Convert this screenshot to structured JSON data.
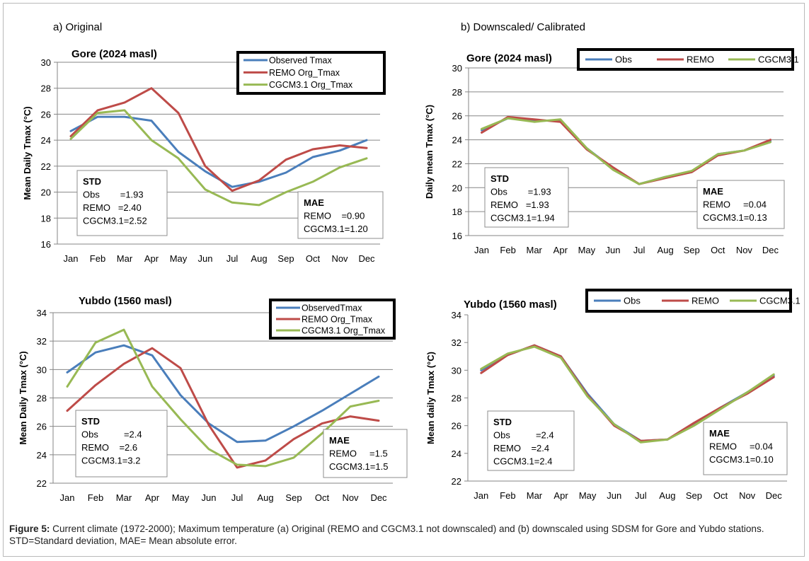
{
  "colors": {
    "obs": "#4a7ebb",
    "remo": "#be4b48",
    "cgcm": "#98b954",
    "grid": "#868686"
  },
  "section_labels": {
    "a": "a) Original",
    "b": "b) Downscaled/ Calibrated"
  },
  "caption": {
    "label": "Figure 5:",
    "text": " Current climate (1972-2000); Maximum temperature (a) Original (REMO and CGCM3.1 not downscaled) and (b) downscaled using SDSM for Gore and Yubdo stations. STD=Standard deviation, MAE= Mean absolute error."
  },
  "chart_data": [
    {
      "type": "line",
      "title": "Gore (2024 masl)",
      "ylabel": "Mean Daily Tmax (°C)",
      "ylim": [
        16,
        30
      ],
      "yticks": [
        "16",
        "18",
        "20",
        "22",
        "24",
        "26",
        "28",
        "30"
      ],
      "categories": [
        "Jan",
        "Feb",
        "Mar",
        "Apr",
        "May",
        "Jun",
        "Jul",
        "Aug",
        "Sep",
        "Oct",
        "Nov",
        "Dec"
      ],
      "grid": true,
      "legend_position": "top-right",
      "series": [
        {
          "name": "Observed Tmax",
          "color_key": "obs",
          "values": [
            24.7,
            25.8,
            25.8,
            25.5,
            23.1,
            21.6,
            20.4,
            20.8,
            21.5,
            22.7,
            23.2,
            24.0
          ]
        },
        {
          "name": "REMO Org_Tmax",
          "color_key": "remo",
          "values": [
            24.3,
            26.3,
            26.9,
            28.0,
            26.1,
            22.0,
            20.1,
            20.9,
            22.5,
            23.3,
            23.6,
            23.4
          ]
        },
        {
          "name": "CGCM3.1 Org_Tmax",
          "color_key": "cgcm",
          "values": [
            24.1,
            26.1,
            26.3,
            24.0,
            22.6,
            20.2,
            19.2,
            19.0,
            20.0,
            20.8,
            21.9,
            22.6
          ]
        }
      ],
      "stat_boxes": [
        {
          "title": "STD",
          "lines": [
            "Obs        =1.93",
            "REMO   =2.40",
            "CGCM3.1=2.52"
          ]
        },
        {
          "title": "MAE",
          "lines": [
            "REMO    =0.90",
            "CGCM3.1=1.20"
          ]
        }
      ]
    },
    {
      "type": "line",
      "title": "Gore (2024 masl)",
      "ylabel": "Daily mean Tmax (°C)",
      "ylim": [
        16,
        30
      ],
      "yticks": [
        "16",
        "18",
        "20",
        "22",
        "24",
        "26",
        "28",
        "30"
      ],
      "categories": [
        "Jan",
        "Feb",
        "Mar",
        "Apr",
        "May",
        "Jun",
        "Jul",
        "Aug",
        "Sep",
        "Oct",
        "Nov",
        "Dec"
      ],
      "grid": true,
      "legend_position": "top",
      "series": [
        {
          "name": "Obs",
          "color_key": "obs",
          "values": [
            24.8,
            25.8,
            25.6,
            25.6,
            23.3,
            21.6,
            20.3,
            20.9,
            21.3,
            22.8,
            23.1,
            23.9
          ]
        },
        {
          "name": "REMO",
          "color_key": "remo",
          "values": [
            24.6,
            25.9,
            25.7,
            25.5,
            23.2,
            21.7,
            20.3,
            20.8,
            21.3,
            22.7,
            23.1,
            24.0
          ]
        },
        {
          "name": "CGCM3.1",
          "color_key": "cgcm",
          "values": [
            24.9,
            25.8,
            25.5,
            25.7,
            23.3,
            21.5,
            20.3,
            20.9,
            21.4,
            22.8,
            23.1,
            23.8
          ]
        }
      ],
      "stat_boxes": [
        {
          "title": "STD",
          "lines": [
            "Obs        =1.93",
            "REMO   =1.93",
            "CGCM3.1=1.94"
          ]
        },
        {
          "title": "MAE",
          "lines": [
            "REMO     =0.04",
            "CGCM3.1=0.13"
          ]
        }
      ]
    },
    {
      "type": "line",
      "title": "Yubdo (1560 masl)",
      "ylabel": "Mean Daily Tmax (°C)",
      "ylim": [
        22,
        34
      ],
      "yticks": [
        "22",
        "24",
        "26",
        "28",
        "30",
        "32",
        "34"
      ],
      "categories": [
        "Jan",
        "Feb",
        "Mar",
        "Apr",
        "May",
        "Jun",
        "Jul",
        "Aug",
        "Sep",
        "Oct",
        "Nov",
        "Dec"
      ],
      "grid": true,
      "legend_position": "top-right",
      "series": [
        {
          "name": "ObservedTmax",
          "color_key": "obs",
          "values": [
            29.8,
            31.2,
            31.7,
            31.0,
            28.2,
            26.2,
            24.9,
            25.0,
            26.0,
            27.1,
            28.3,
            29.5
          ]
        },
        {
          "name": "REMO Org_Tmax",
          "color_key": "remo",
          "values": [
            27.1,
            28.9,
            30.4,
            31.5,
            30.1,
            26.1,
            23.1,
            23.6,
            25.1,
            26.2,
            26.7,
            26.4
          ]
        },
        {
          "name": "CGCM3.1 Org_Tmax",
          "color_key": "cgcm",
          "values": [
            28.8,
            31.9,
            32.8,
            28.8,
            26.5,
            24.4,
            23.3,
            23.2,
            23.8,
            25.5,
            27.4,
            27.8
          ]
        }
      ],
      "stat_boxes": [
        {
          "title": "STD",
          "lines": [
            "Obs          =2.4",
            "REMO    =2.6",
            "CGCM3.1=3.2"
          ]
        },
        {
          "title": "MAE",
          "lines": [
            "REMO     =1.5",
            "CGCM3.1=1.5"
          ]
        }
      ]
    },
    {
      "type": "line",
      "title": "Yubdo (1560 masl)",
      "ylabel": "Mean daily Tmax (°C)",
      "ylim": [
        22,
        34
      ],
      "yticks": [
        "22",
        "24",
        "26",
        "28",
        "30",
        "32",
        "34"
      ],
      "categories": [
        "Jan",
        "Feb",
        "Mar",
        "Apr",
        "May",
        "Jun",
        "Jul",
        "Aug",
        "Sep",
        "Oct",
        "Nov",
        "Dec"
      ],
      "grid": false,
      "legend_position": "top",
      "series": [
        {
          "name": "Obs",
          "color_key": "obs",
          "values": [
            30.0,
            31.1,
            31.8,
            31.0,
            28.3,
            26.1,
            24.9,
            25.0,
            26.1,
            27.3,
            28.4,
            29.6
          ]
        },
        {
          "name": "REMO",
          "color_key": "remo",
          "values": [
            29.8,
            31.1,
            31.8,
            31.0,
            28.2,
            26.0,
            24.9,
            25.0,
            26.2,
            27.3,
            28.3,
            29.5
          ]
        },
        {
          "name": "CGCM3.1",
          "color_key": "cgcm",
          "values": [
            30.1,
            31.2,
            31.7,
            30.9,
            28.1,
            26.1,
            24.8,
            25.0,
            26.0,
            27.2,
            28.4,
            29.7
          ]
        }
      ],
      "stat_boxes": [
        {
          "title": "STD",
          "lines": [
            "Obs          =2.4",
            "REMO    =2.4",
            "CGCM3.1=2.4"
          ]
        },
        {
          "title": "MAE",
          "lines": [
            "REMO     =0.04",
            "CGCM3.1=0.10"
          ]
        }
      ]
    }
  ]
}
